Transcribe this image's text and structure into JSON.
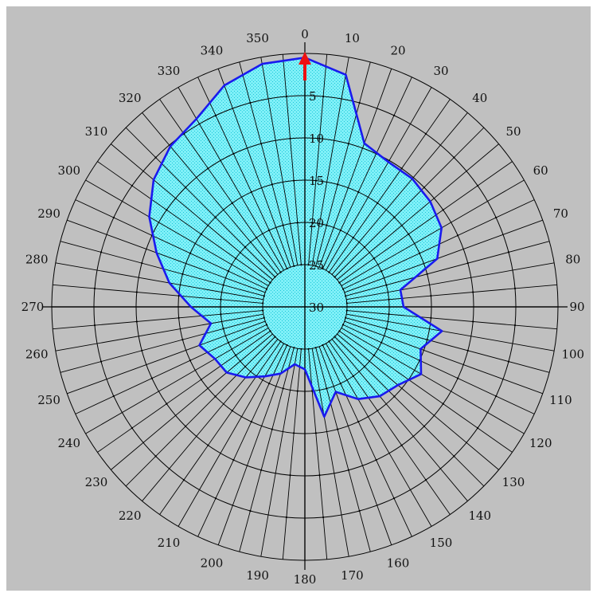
{
  "chart_data": {
    "type": "polar-area",
    "direction": "clockwise",
    "zero_at": "top",
    "theta_ticks": [
      "0",
      "10",
      "20",
      "30",
      "40",
      "50",
      "60",
      "70",
      "80",
      "90",
      "100",
      "110",
      "120",
      "130",
      "140",
      "150",
      "160",
      "170",
      "180",
      "190",
      "200",
      "210",
      "220",
      "230",
      "240",
      "250",
      "260",
      "270",
      "280",
      "290",
      "300",
      "310",
      "320",
      "330",
      "340",
      "350"
    ],
    "radial_ticks": [
      "5",
      "10",
      "15",
      "20",
      "25",
      "30"
    ],
    "radial_axis": "reversed",
    "radial_range": [
      0,
      30
    ],
    "fill_color": "#7ff0f8",
    "edge_color": "#1a1aee",
    "marker": {
      "angle": 0,
      "color": "#ee1111",
      "symbol": "north-arrow"
    },
    "series": {
      "theta": [
        0,
        10,
        20,
        30,
        40,
        50,
        60,
        70,
        80,
        90,
        100,
        110,
        120,
        130,
        140,
        150,
        160,
        170,
        180,
        190,
        200,
        210,
        220,
        230,
        240,
        250,
        260,
        270,
        280,
        290,
        300,
        310,
        320,
        330,
        340,
        350
      ],
      "r": [
        0.5,
        2.1,
        9.4,
        10.2,
        10.2,
        10.6,
        11.3,
        13.3,
        18.5,
        18.3,
        13.5,
        15.4,
        14.1,
        15.6,
        16.2,
        17.4,
        19.3,
        16.8,
        22.6,
        23.1,
        21.6,
        20.5,
        19.1,
        17.9,
        17.7,
        16.7,
        18.7,
        16.5,
        13.7,
        11.3,
        8.7,
        6.6,
        5.2,
        4.3,
        2.1,
        0.8
      ]
    }
  }
}
